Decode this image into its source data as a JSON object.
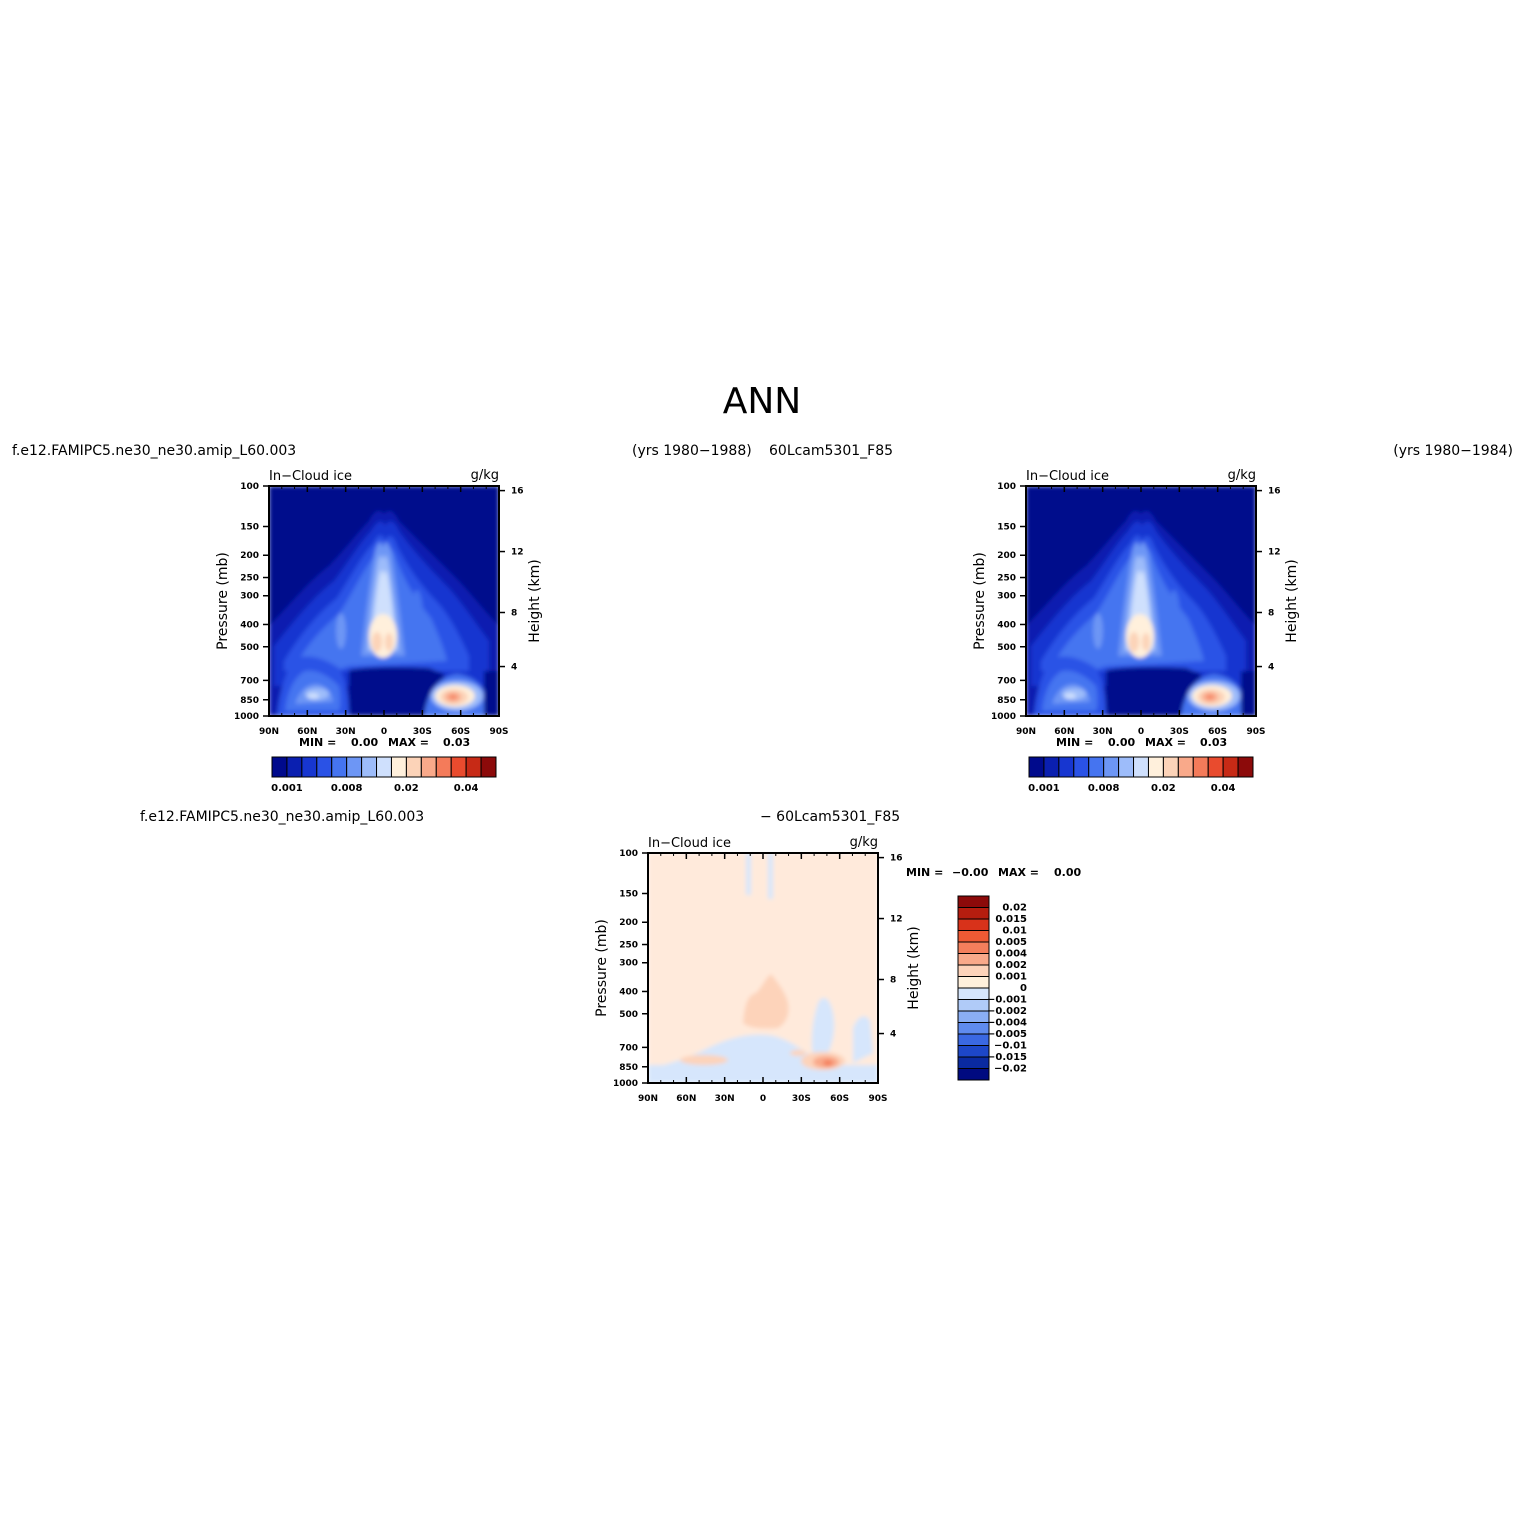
{
  "page": {
    "title": "ANN",
    "case1_label": "f.e12.FAMIPC5.ne30_ne30.amip_L60.003",
    "years_case1": "(yrs 1980−1988)",
    "case2_label": "60Lcam5301_F85",
    "years_case2": "(yrs 1980−1984)",
    "diff_left_label": "f.e12.FAMIPC5.ne30_ne30.amip_L60.003",
    "diff_right_label": "− 60Lcam5301_F85"
  },
  "chart_data": [
    {
      "id": "case1",
      "type": "heatmap",
      "subtitle": "In−Cloud ice",
      "units": "g/kg",
      "ylabel": "Pressure (mb)",
      "y2label": "Height (km)",
      "x_ticks": [
        "90N",
        "60N",
        "30N",
        "0",
        "30S",
        "60S",
        "90S"
      ],
      "y_ticks": [
        "100",
        "150",
        "200",
        "250",
        "300",
        "400",
        "500",
        "700",
        "850",
        "1000"
      ],
      "y2_ticks": [
        "16",
        "12",
        "8",
        "4"
      ],
      "min_label": "MIN =",
      "min_value": "0.00",
      "max_label": "MAX =",
      "max_value": "0.03",
      "colorbar_labels": [
        "0.001",
        "0.008",
        "0.02",
        "0.04"
      ],
      "colors": [
        "#000a8c",
        "#0a1fb0",
        "#1736d0",
        "#2a52e6",
        "#4574f0",
        "#6d96f5",
        "#9dbcfa",
        "#cfe0fd",
        "#fff0dc",
        "#fcd3b8",
        "#f9a98a",
        "#f47b5a",
        "#e94b2e",
        "#c72a16",
        "#8c0a0a"
      ]
    },
    {
      "id": "case2",
      "type": "heatmap",
      "subtitle": "In−Cloud ice",
      "units": "g/kg",
      "ylabel": "Pressure (mb)",
      "y2label": "Height (km)",
      "x_ticks": [
        "90N",
        "60N",
        "30N",
        "0",
        "30S",
        "60S",
        "90S"
      ],
      "y_ticks": [
        "100",
        "150",
        "200",
        "250",
        "300",
        "400",
        "500",
        "700",
        "850",
        "1000"
      ],
      "y2_ticks": [
        "16",
        "12",
        "8",
        "4"
      ],
      "min_label": "MIN =",
      "min_value": "0.00",
      "max_label": "MAX =",
      "max_value": "0.03",
      "colorbar_labels": [
        "0.001",
        "0.008",
        "0.02",
        "0.04"
      ],
      "colors": [
        "#000a8c",
        "#0a1fb0",
        "#1736d0",
        "#2a52e6",
        "#4574f0",
        "#6d96f5",
        "#9dbcfa",
        "#cfe0fd",
        "#fff0dc",
        "#fcd3b8",
        "#f9a98a",
        "#f47b5a",
        "#e94b2e",
        "#c72a16",
        "#8c0a0a"
      ]
    },
    {
      "id": "diff",
      "type": "heatmap",
      "subtitle": "In−Cloud ice",
      "units": "g/kg",
      "ylabel": "Pressure (mb)",
      "y2label": "Height (km)",
      "x_ticks": [
        "90N",
        "60N",
        "30N",
        "0",
        "30S",
        "60S",
        "90S"
      ],
      "y_ticks": [
        "100",
        "150",
        "200",
        "250",
        "300",
        "400",
        "500",
        "700",
        "850",
        "1000"
      ],
      "y2_ticks": [
        "16",
        "12",
        "8",
        "4"
      ],
      "min_label": "MIN =",
      "min_value": "−0.00",
      "max_label": "MAX =",
      "max_value": "0.00",
      "colorbar_labels": [
        "0.02",
        "0.015",
        "0.01",
        "0.005",
        "0.004",
        "0.002",
        "0.001",
        "0",
        "−0.001",
        "−0.002",
        "−0.004",
        "−0.005",
        "−0.01",
        "−0.015",
        "−0.02"
      ],
      "colors": [
        "#8c0a0a",
        "#b51d0f",
        "#d8321a",
        "#ee5a34",
        "#f47f5c",
        "#f9a98a",
        "#fdd3ba",
        "#fff0dc",
        "#d6e6fc",
        "#b0cbf8",
        "#8aaef4",
        "#5f8bee",
        "#3a68e2",
        "#1d47c8",
        "#0a2aa0",
        "#000a80"
      ]
    }
  ]
}
